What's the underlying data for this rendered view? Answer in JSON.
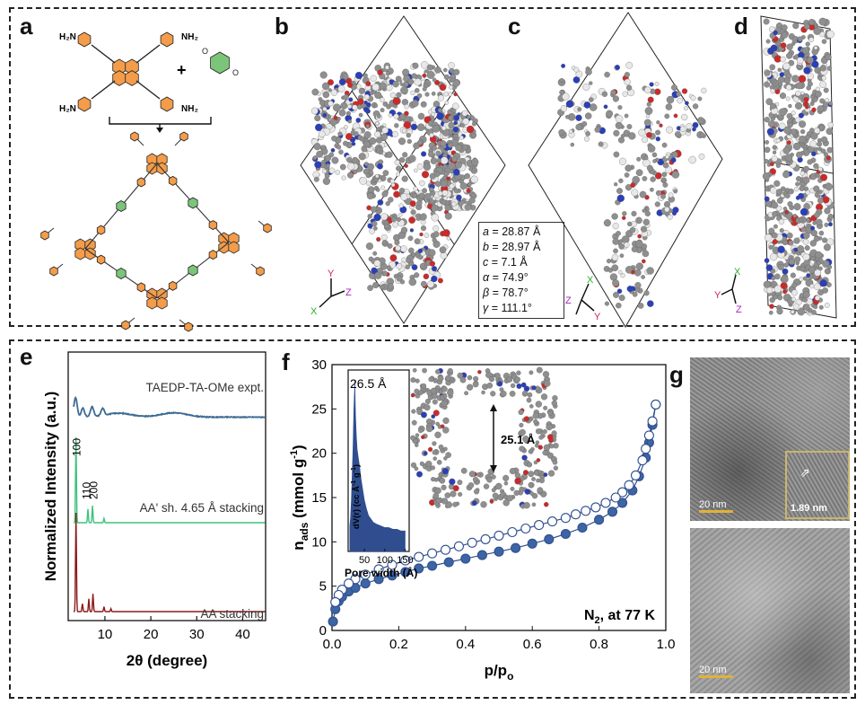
{
  "panels": {
    "a": {
      "letter": "a",
      "plus": "+",
      "labels": {
        "nh2": "NH",
        "h2n": "H",
        "nh": "NH",
        "sub2": "2",
        "n": "N"
      }
    },
    "b": {
      "letter": "b",
      "axes": {
        "y": "Y",
        "z": "Z",
        "x": "X"
      },
      "cell_params": [
        {
          "sym": "a",
          "eq": " = 28.87 Å"
        },
        {
          "sym": "b",
          "eq": " = 28.97 Å"
        },
        {
          "sym": "c",
          "eq": " = 7.1 Å"
        },
        {
          "sym": "α",
          "eq": " = 74.9°"
        },
        {
          "sym": "β",
          "eq": " = 78.7°"
        },
        {
          "sym": "γ",
          "eq": " = 111.1°"
        }
      ]
    },
    "c": {
      "letter": "c",
      "axes": {
        "x": "X",
        "z": "Z",
        "y": "Y"
      }
    },
    "d": {
      "letter": "d",
      "axes": {
        "x": "X",
        "y": "Y",
        "z": "Z"
      }
    },
    "e": {
      "letter": "e"
    },
    "f": {
      "letter": "f"
    },
    "g": {
      "letter": "g",
      "scale_top": "20 nm",
      "scale_bottom": "20 nm",
      "inset_spacing": "1.89 nm"
    }
  },
  "chart_data": [
    {
      "type": "line",
      "panel": "e",
      "xlabel": "2θ (degree)",
      "ylabel": "Normalized Intensity (a.u.)",
      "xlim": [
        2,
        45
      ],
      "xticks": [
        10,
        20,
        30,
        40
      ],
      "series": [
        {
          "name": "TAEDP-TA-OMe expt.",
          "color": "#3d6b94",
          "peaks": [
            [
              3.6,
              1.0
            ],
            [
              5.2,
              0.45
            ],
            [
              7.2,
              0.5
            ],
            [
              9.5,
              0.35
            ],
            [
              13,
              0.2
            ],
            [
              25,
              0.22
            ]
          ]
        },
        {
          "name": "AA' sh. 4.65 Å stacking",
          "color": "#3fc27d",
          "peaks": [
            [
              3.7,
              1.0
            ],
            [
              6.3,
              0.16
            ],
            [
              7.3,
              0.2
            ],
            [
              9.8,
              0.05
            ]
          ],
          "peak_labels": [
            "100",
            "110",
            "200"
          ]
        },
        {
          "name": "AA stacking",
          "color": "#8b1a1a",
          "peaks": [
            [
              3.7,
              1.0
            ],
            [
              5.1,
              0.08
            ],
            [
              6.5,
              0.13
            ],
            [
              7.4,
              0.18
            ],
            [
              9.8,
              0.05
            ],
            [
              11.3,
              0.03
            ]
          ]
        }
      ]
    },
    {
      "type": "scatter",
      "panel": "f",
      "xlabel": "p/p",
      "xlabel_sub": "o",
      "ylabel": "n",
      "ylabel_sub": "ads",
      "ylabel_unit": " (mmol g",
      "ylabel_unit_sup": "-1",
      "ylabel_unit_end": ")",
      "annotation": "N",
      "annotation_sub": "2",
      "annotation_end": ", at 77 K",
      "pore_label": "25.1 Å",
      "xlim": [
        0,
        1.0
      ],
      "ylim": [
        0,
        30
      ],
      "xticks": [
        0.0,
        0.2,
        0.4,
        0.6,
        0.8,
        1.0
      ],
      "yticks": [
        0,
        5,
        10,
        15,
        20,
        25,
        30
      ],
      "series": [
        {
          "name": "adsorption",
          "fill": "#3d64a3",
          "x": [
            0.003,
            0.01,
            0.02,
            0.03,
            0.05,
            0.07,
            0.1,
            0.14,
            0.18,
            0.22,
            0.26,
            0.3,
            0.35,
            0.4,
            0.45,
            0.5,
            0.55,
            0.6,
            0.65,
            0.7,
            0.75,
            0.8,
            0.84,
            0.87,
            0.9,
            0.92,
            0.94,
            0.95,
            0.96,
            0.97
          ],
          "y": [
            1.0,
            2.4,
            3.3,
            3.8,
            4.4,
            4.8,
            5.3,
            5.8,
            6.2,
            6.6,
            7.0,
            7.3,
            7.7,
            8.1,
            8.5,
            8.9,
            9.3,
            9.8,
            10.3,
            10.9,
            11.6,
            12.5,
            13.4,
            14.4,
            15.8,
            17.4,
            19.5,
            21.2,
            23.2,
            25.5
          ]
        },
        {
          "name": "desorption",
          "fill": "none",
          "x": [
            0.97,
            0.96,
            0.95,
            0.94,
            0.93,
            0.91,
            0.89,
            0.87,
            0.85,
            0.82,
            0.79,
            0.76,
            0.73,
            0.7,
            0.66,
            0.62,
            0.58,
            0.54,
            0.5,
            0.46,
            0.42,
            0.38,
            0.34,
            0.3,
            0.26,
            0.22,
            0.18,
            0.14,
            0.1,
            0.07,
            0.05,
            0.03,
            0.02,
            0.01
          ],
          "y": [
            25.5,
            23.6,
            22.0,
            20.5,
            19.2,
            17.5,
            16.4,
            15.6,
            15.0,
            14.4,
            13.9,
            13.5,
            13.1,
            12.7,
            12.3,
            11.9,
            11.5,
            11.1,
            10.7,
            10.3,
            9.9,
            9.5,
            9.1,
            8.7,
            8.3,
            7.9,
            7.4,
            6.9,
            6.3,
            5.8,
            5.3,
            4.6,
            4.0,
            3.2
          ]
        }
      ]
    },
    {
      "type": "bar",
      "panel": "f-inset",
      "xlabel": "Pore width (Å)",
      "ylabel": "dV(r) (cc Å",
      "ylabel_sup": "-1",
      "ylabel_tail": " g",
      "ylabel_sup2": "-1",
      "ylabel_end": ")",
      "peak_label": "26.5 Å",
      "xlim": [
        10,
        160
      ],
      "xticks": [
        50,
        100,
        150
      ],
      "color": "#2f4d8f",
      "x": [
        14,
        16,
        18,
        20,
        22,
        24,
        25,
        26,
        26.5,
        27,
        28,
        30,
        32,
        35,
        38,
        42,
        46,
        50,
        55,
        60,
        66,
        72,
        80,
        90,
        100,
        110,
        120,
        130,
        140,
        150
      ],
      "values": [
        0.15,
        0.2,
        0.3,
        0.45,
        0.6,
        0.82,
        0.9,
        0.96,
        1.0,
        0.93,
        0.8,
        0.68,
        0.6,
        0.55,
        0.5,
        0.42,
        0.36,
        0.3,
        0.25,
        0.21,
        0.19,
        0.17,
        0.16,
        0.15,
        0.14,
        0.14,
        0.13,
        0.13,
        0.12,
        0.12
      ]
    }
  ],
  "colors": {
    "orange": "#f39c4a",
    "green": "#7cc47a",
    "atom_c": "#8f8f8f",
    "atom_n": "#2b3fb8",
    "atom_o": "#cc2a2a",
    "inset_border": "#c9b56b",
    "scale_bar": "#e0b23a"
  }
}
